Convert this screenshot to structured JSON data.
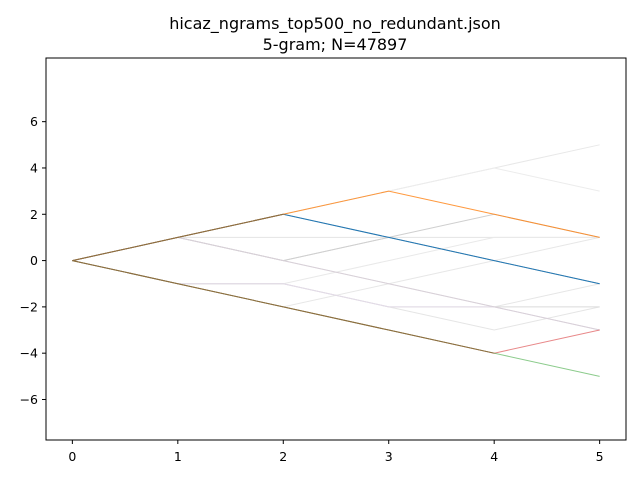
{
  "chart_data": {
    "type": "line",
    "title": "hicaz_ngrams_top500_no_redundant.json",
    "subtitle": "5-gram; N=47897",
    "xlabel": "",
    "ylabel": "",
    "xlim": [
      -0.25,
      5.25
    ],
    "ylim": [
      -7.75,
      8.75
    ],
    "xticks": [
      0,
      1,
      2,
      3,
      4,
      5
    ],
    "yticks": [
      -6,
      -4,
      -2,
      0,
      2,
      4,
      6
    ],
    "grid": false,
    "series": [
      {
        "color": "#e8e8e8",
        "x": [
          0,
          1,
          2,
          3,
          4,
          5
        ],
        "y": [
          0,
          1,
          2,
          3,
          4,
          5
        ]
      },
      {
        "color": "#ececec",
        "x": [
          0,
          1,
          2,
          3,
          4,
          5
        ],
        "y": [
          0,
          1,
          2,
          3,
          4,
          3
        ]
      },
      {
        "color": "#e4e4e4",
        "x": [
          0,
          1,
          2,
          3,
          4,
          5
        ],
        "y": [
          0,
          1,
          1,
          1,
          1,
          1
        ]
      },
      {
        "color": "#e6e6e6",
        "x": [
          0,
          1,
          2,
          3,
          4,
          5
        ],
        "y": [
          0,
          1,
          0,
          -1,
          -2,
          -1
        ]
      },
      {
        "color": "#e9e9e9",
        "x": [
          0,
          1,
          2,
          3,
          4,
          5
        ],
        "y": [
          0,
          -1,
          -1,
          0,
          1,
          1
        ]
      },
      {
        "color": "#e7e7e7",
        "x": [
          0,
          1,
          2,
          3,
          4,
          5
        ],
        "y": [
          0,
          -1,
          -2,
          -1,
          0,
          1
        ]
      },
      {
        "color": "#e5e5e5",
        "x": [
          0,
          1,
          2,
          3,
          4,
          5
        ],
        "y": [
          0,
          -1,
          -1,
          -2,
          -3,
          -2
        ]
      },
      {
        "color": "#dadada",
        "x": [
          0,
          1,
          2,
          3,
          4,
          5
        ],
        "y": [
          0,
          -1,
          -1,
          -2,
          -2,
          -2
        ]
      },
      {
        "color": "#e3dbe8",
        "x": [
          0,
          1,
          2,
          3,
          4,
          5
        ],
        "y": [
          0,
          -1,
          -1,
          -2,
          -2,
          -3
        ]
      },
      {
        "color": "#d9d9d9",
        "x": [
          0,
          1,
          2,
          3,
          4,
          5
        ],
        "y": [
          0,
          1,
          0,
          1,
          0,
          -1
        ]
      },
      {
        "color": "#cfcfcf",
        "x": [
          0,
          1,
          2,
          3,
          4,
          5
        ],
        "y": [
          0,
          1,
          0,
          1,
          2,
          1
        ]
      },
      {
        "color": "#c8c0c0",
        "x": [
          0,
          1,
          2,
          3,
          4,
          5
        ],
        "y": [
          0,
          1,
          2,
          1,
          0,
          -1
        ]
      },
      {
        "color": "#d8d0d8",
        "x": [
          0,
          1,
          2,
          3,
          4,
          5
        ],
        "y": [
          0,
          1,
          0,
          -1,
          -2,
          -3
        ]
      },
      {
        "color": "#d62728",
        "opacity": 0.55,
        "x": [
          0,
          1,
          2,
          3,
          4,
          5
        ],
        "y": [
          0,
          -1,
          -2,
          -3,
          -4,
          -3
        ]
      },
      {
        "color": "#2ca02c",
        "opacity": 0.55,
        "x": [
          0,
          1,
          2,
          3,
          4,
          5
        ],
        "y": [
          0,
          -1,
          -2,
          -3,
          -4,
          -5
        ]
      },
      {
        "color": "#8c6d3f",
        "x": [
          0,
          1,
          2,
          3,
          4
        ],
        "y": [
          0,
          -1,
          -2,
          -3,
          -4
        ]
      },
      {
        "color": "#1f77b4",
        "x": [
          0,
          1,
          2,
          3,
          4,
          5
        ],
        "y": [
          0,
          1,
          2,
          1,
          0,
          -1
        ]
      },
      {
        "color": "#ff7f0e",
        "opacity": 0.8,
        "x": [
          0,
          1,
          2,
          3,
          4,
          5
        ],
        "y": [
          0,
          1,
          2,
          3,
          2,
          1
        ]
      },
      {
        "color": "#8c6d3f",
        "x": [
          0,
          1,
          2
        ],
        "y": [
          0,
          1,
          2
        ]
      }
    ]
  }
}
